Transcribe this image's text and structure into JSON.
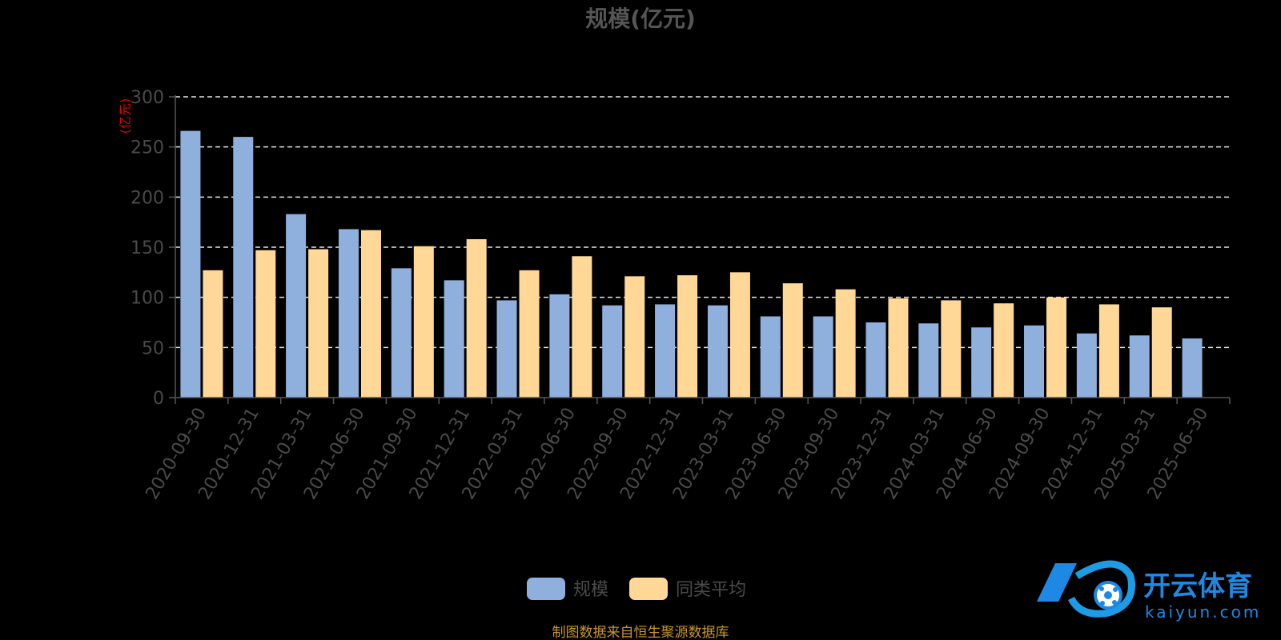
{
  "chart_data": {
    "type": "bar",
    "title": "规模(亿元)",
    "unit": "(亿元)",
    "categories": [
      "2020-09-30",
      "2020-12-31",
      "2021-03-31",
      "2021-06-30",
      "2021-09-30",
      "2021-12-31",
      "2022-03-31",
      "2022-06-30",
      "2022-09-30",
      "2022-12-31",
      "2023-03-31",
      "2023-06-30",
      "2023-09-30",
      "2023-12-31",
      "2024-03-31",
      "2024-06-30",
      "2024-09-30",
      "2024-12-31",
      "2025-03-31",
      "2025-06-30"
    ],
    "series": [
      {
        "name": "规模",
        "color": "#8fb0dd",
        "values": [
          266,
          260,
          183,
          168,
          129,
          117,
          97,
          103,
          92,
          93,
          92,
          81,
          81,
          75,
          74,
          70,
          72,
          64,
          62,
          59
        ]
      },
      {
        "name": "同类平均",
        "color": "#ffd898",
        "values": [
          127,
          147,
          148,
          167,
          151,
          158,
          127,
          141,
          121,
          122,
          125,
          114,
          108,
          99,
          97,
          94,
          100,
          93,
          90,
          null
        ]
      }
    ],
    "yticks": [
      0,
      50,
      100,
      150,
      200,
      250,
      300
    ],
    "ylim": [
      0,
      300
    ],
    "grid": true,
    "legend": "bottom-center",
    "source": "制图数据来自恒生聚源数据库"
  },
  "watermark": {
    "brand": "开云体育",
    "domain": "kaiyun.com"
  }
}
